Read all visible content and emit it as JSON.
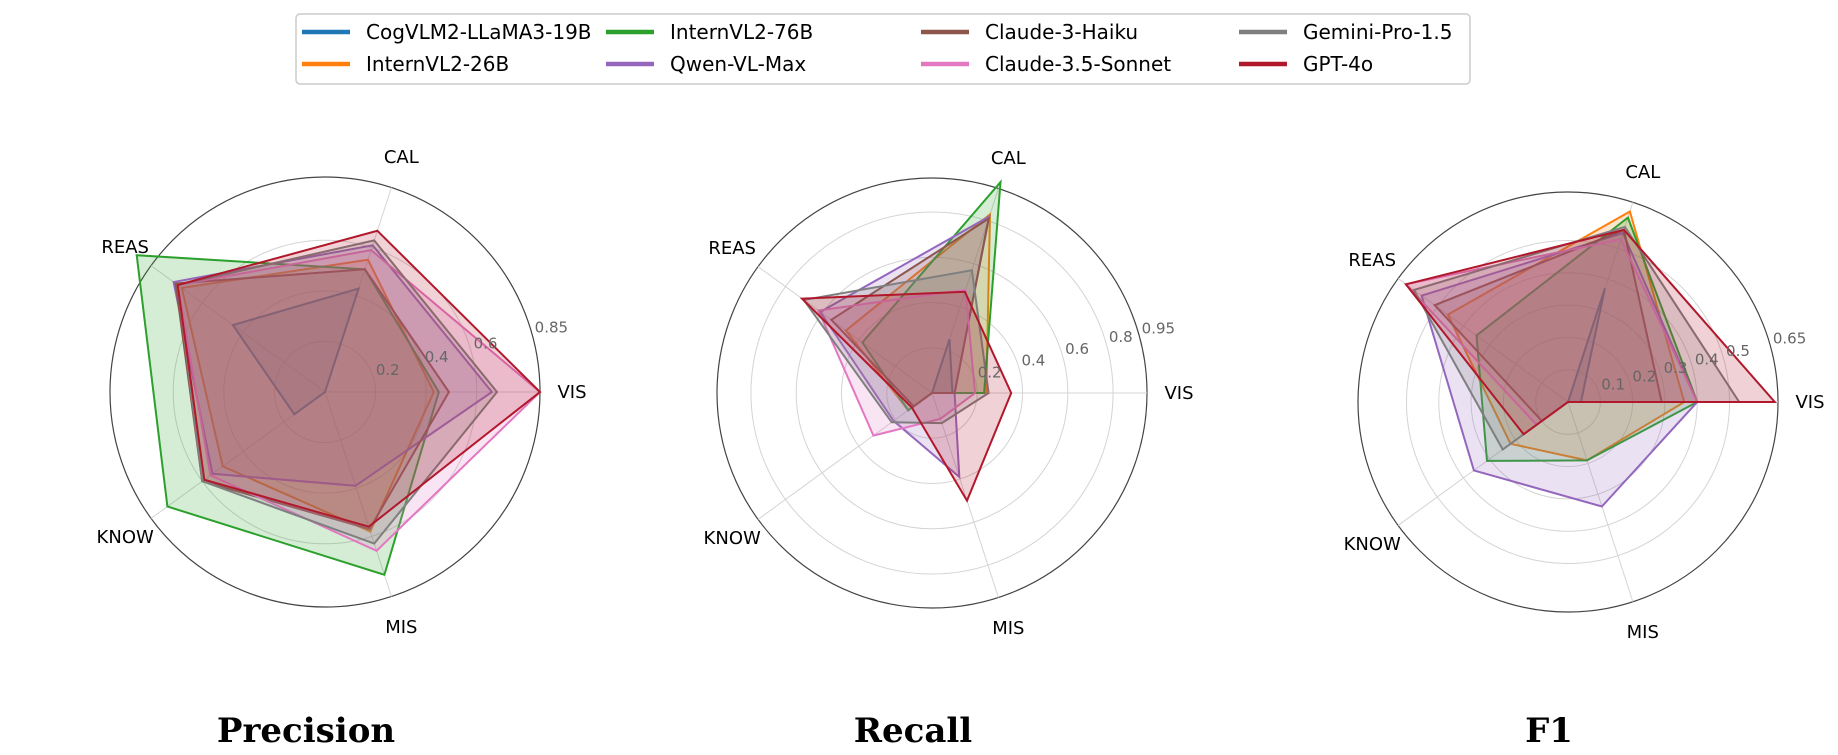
{
  "chart_data": {
    "type": "radar",
    "axes": [
      "VIS",
      "CAL",
      "REAS",
      "KNOW",
      "MIS"
    ],
    "legend": {
      "placement": "top-center",
      "columns": 4,
      "entries": [
        {
          "name": "CogVLM2-LLaMA3-19B",
          "color": "#1f77b4"
        },
        {
          "name": "InternVL2-26B",
          "color": "#ff7f0e"
        },
        {
          "name": "InternVL2-76B",
          "color": "#2ca02c"
        },
        {
          "name": "Qwen-VL-Max",
          "color": "#9467bd"
        },
        {
          "name": "Claude-3-Haiku",
          "color": "#8c564b"
        },
        {
          "name": "Claude-3.5-Sonnet",
          "color": "#e377c2"
        },
        {
          "name": "Gemini-Pro-1.5",
          "color": "#7f7f7f"
        },
        {
          "name": "GPT-4o",
          "color": "#b2182b"
        }
      ]
    },
    "panels": [
      {
        "title": "Precision",
        "rmax": 0.85,
        "ticks": [
          "0.2",
          "0.4",
          "0.6",
          "0.85"
        ],
        "tick_values": [
          0.2,
          0.4,
          0.6,
          0.85
        ],
        "series": [
          {
            "name": "CogVLM2-LLaMA3-19B",
            "values": [
              0.0,
              0.43,
              0.45,
              0.15,
              0.0
            ]
          },
          {
            "name": "InternVL2-26B",
            "values": [
              0.43,
              0.55,
              0.7,
              0.5,
              0.58
            ]
          },
          {
            "name": "InternVL2-76B",
            "values": [
              0.45,
              0.51,
              0.92,
              0.77,
              0.76
            ]
          },
          {
            "name": "Qwen-VL-Max",
            "values": [
              0.66,
              0.61,
              0.74,
              0.55,
              0.39
            ]
          },
          {
            "name": "Claude-3-Haiku",
            "values": [
              0.49,
              0.51,
              0.73,
              0.6,
              0.57
            ]
          },
          {
            "name": "Claude-3.5-Sonnet",
            "values": [
              0.85,
              0.59,
              0.72,
              0.56,
              0.66
            ]
          },
          {
            "name": "Gemini-Pro-1.5",
            "values": [
              0.68,
              0.63,
              0.72,
              0.6,
              0.63
            ]
          },
          {
            "name": "GPT-4o",
            "values": [
              0.85,
              0.67,
              0.72,
              0.59,
              0.56
            ]
          }
        ]
      },
      {
        "title": "Recall",
        "rmax": 0.95,
        "ticks": [
          "0.2",
          "0.4",
          "0.6",
          "0.8",
          "0.95"
        ],
        "tick_values": [
          0.2,
          0.4,
          0.6,
          0.8,
          0.95
        ],
        "series": [
          {
            "name": "CogVLM2-LLaMA3-19B",
            "values": [
              0.09,
              0.25,
              0.0,
              0.08,
              0.0
            ]
          },
          {
            "name": "InternVL2-26B",
            "values": [
              0.24,
              0.83,
              0.47,
              0.13,
              0.0
            ]
          },
          {
            "name": "InternVL2-76B",
            "values": [
              0.23,
              0.98,
              0.38,
              0.13,
              0.0
            ]
          },
          {
            "name": "Qwen-VL-Max",
            "values": [
              0.1,
              0.82,
              0.61,
              0.21,
              0.39
            ]
          },
          {
            "name": "Claude-3-Haiku",
            "values": [
              0.1,
              0.81,
              0.55,
              0.1,
              0.0
            ]
          },
          {
            "name": "Claude-3.5-Sonnet",
            "values": [
              0.19,
              0.48,
              0.62,
              0.32,
              0.12
            ]
          },
          {
            "name": "Gemini-Pro-1.5",
            "values": [
              0.25,
              0.57,
              0.7,
              0.22,
              0.14
            ]
          },
          {
            "name": "GPT-4o",
            "values": [
              0.35,
              0.47,
              0.71,
              0.11,
              0.5
            ]
          }
        ]
      },
      {
        "title": "F1",
        "rmax": 0.65,
        "ticks": [
          "0.1",
          "0.2",
          "0.3",
          "0.4",
          "0.5",
          "0.65"
        ],
        "tick_values": [
          0.1,
          0.2,
          0.3,
          0.4,
          0.5,
          0.65
        ],
        "series": [
          {
            "name": "CogVLM2-LLaMA3-19B",
            "values": [
              0.04,
              0.37,
              0.0,
              0.03,
              0.0
            ]
          },
          {
            "name": "InternVL2-26B",
            "values": [
              0.36,
              0.62,
              0.46,
              0.22,
              0.19
            ]
          },
          {
            "name": "InternVL2-76B",
            "values": [
              0.4,
              0.6,
              0.35,
              0.31,
              0.19
            ]
          },
          {
            "name": "Qwen-VL-Max",
            "values": [
              0.4,
              0.55,
              0.56,
              0.36,
              0.34
            ]
          },
          {
            "name": "Claude-3-Haiku",
            "values": [
              0.29,
              0.56,
              0.51,
              0.1,
              0.0
            ]
          },
          {
            "name": "Claude-3.5-Sonnet",
            "values": [
              0.4,
              0.53,
              0.62,
              0.12,
              0.0
            ]
          },
          {
            "name": "Gemini-Pro-1.5",
            "values": [
              0.53,
              0.57,
              0.59,
              0.25,
              0.0
            ]
          },
          {
            "name": "GPT-4o",
            "values": [
              0.64,
              0.56,
              0.62,
              0.17,
              0.0
            ]
          }
        ]
      }
    ]
  }
}
